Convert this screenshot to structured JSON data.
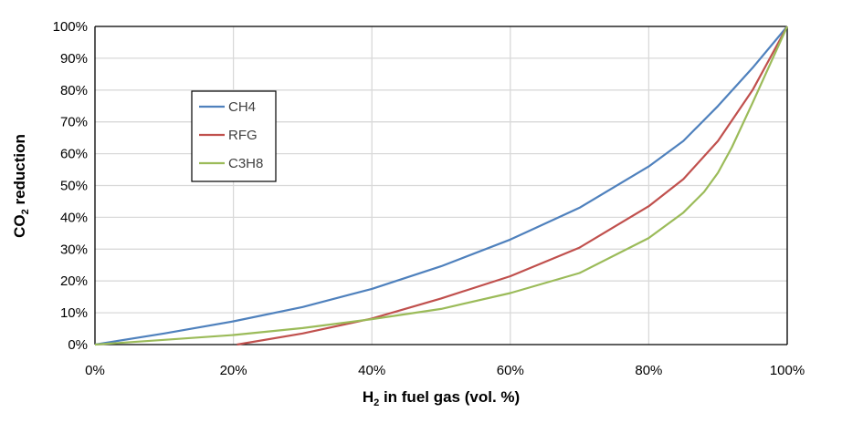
{
  "chart_data": {
    "type": "line",
    "xlabel": {
      "main": "H",
      "sub": "2",
      "rest": " in fuel gas (vol. %)"
    },
    "ylabel": {
      "main": "CO",
      "sub": "2",
      "rest": " reduction"
    },
    "xlim": [
      0,
      100
    ],
    "ylim": [
      0,
      100
    ],
    "x_ticks": [
      0,
      20,
      40,
      60,
      80,
      100
    ],
    "y_ticks": [
      0,
      10,
      20,
      30,
      40,
      50,
      60,
      70,
      80,
      90,
      100
    ],
    "x_tick_labels": [
      "0%",
      "20%",
      "40%",
      "60%",
      "80%",
      "100%"
    ],
    "y_tick_labels": [
      "0%",
      "10%",
      "20%",
      "30%",
      "40%",
      "50%",
      "60%",
      "70%",
      "80%",
      "90%",
      "100%"
    ],
    "grid": {
      "vertical": true,
      "horizontal": true
    },
    "legend_position": "upper-left",
    "series": [
      {
        "name": "CH4",
        "color": "#4F81BD",
        "points": [
          [
            0,
            0
          ],
          [
            10,
            3.5
          ],
          [
            20,
            7.3
          ],
          [
            30,
            11.8
          ],
          [
            40,
            17.5
          ],
          [
            50,
            24.6
          ],
          [
            60,
            33
          ],
          [
            70,
            43
          ],
          [
            80,
            56
          ],
          [
            85,
            64
          ],
          [
            90,
            75
          ],
          [
            95,
            87
          ],
          [
            100,
            100
          ]
        ]
      },
      {
        "name": "RFG",
        "color": "#C0504D",
        "points": [
          [
            20.5,
            0
          ],
          [
            30,
            3.5
          ],
          [
            40,
            8.2
          ],
          [
            50,
            14.5
          ],
          [
            60,
            21.5
          ],
          [
            70,
            30.5
          ],
          [
            80,
            43.5
          ],
          [
            85,
            52
          ],
          [
            90,
            64
          ],
          [
            95,
            80
          ],
          [
            100,
            100
          ]
        ]
      },
      {
        "name": "C3H8",
        "color": "#9BBB59",
        "points": [
          [
            0,
            0
          ],
          [
            10,
            1.5
          ],
          [
            20,
            3
          ],
          [
            30,
            5.2
          ],
          [
            40,
            8
          ],
          [
            50,
            11.2
          ],
          [
            60,
            16.2
          ],
          [
            70,
            22.5
          ],
          [
            80,
            33.5
          ],
          [
            85,
            41.5
          ],
          [
            88,
            48
          ],
          [
            90,
            54
          ],
          [
            92,
            62
          ],
          [
            95,
            76
          ],
          [
            100,
            100
          ]
        ]
      }
    ]
  }
}
